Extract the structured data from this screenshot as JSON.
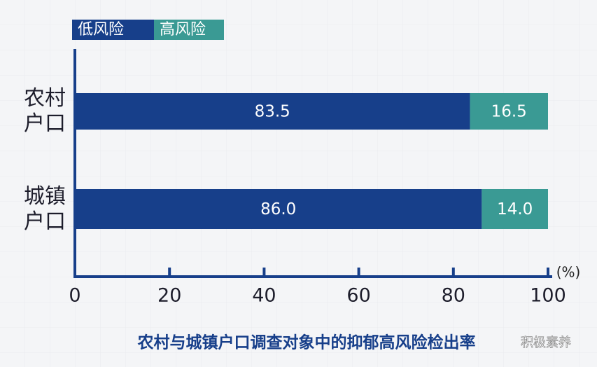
{
  "chart_data": {
    "type": "stacked-bar-horizontal",
    "title": "农村与城镇户口调查对象中的抑郁高风险检出率",
    "x_unit": "(%)",
    "categories": [
      "农村户口",
      "城镇户口"
    ],
    "series": [
      {
        "name": "低风险",
        "color": "#173f8a",
        "values": [
          83.5,
          86.0
        ],
        "value_labels": [
          "83.5",
          "86.0"
        ]
      },
      {
        "name": "高风险",
        "color": "#3a9a94",
        "values": [
          16.5,
          14.0
        ],
        "value_labels": [
          "16.5",
          "14.0"
        ]
      }
    ],
    "xlim": [
      0,
      100
    ],
    "xticks": [
      0,
      20,
      40,
      60,
      80,
      100
    ],
    "watermark": "积极素养"
  }
}
